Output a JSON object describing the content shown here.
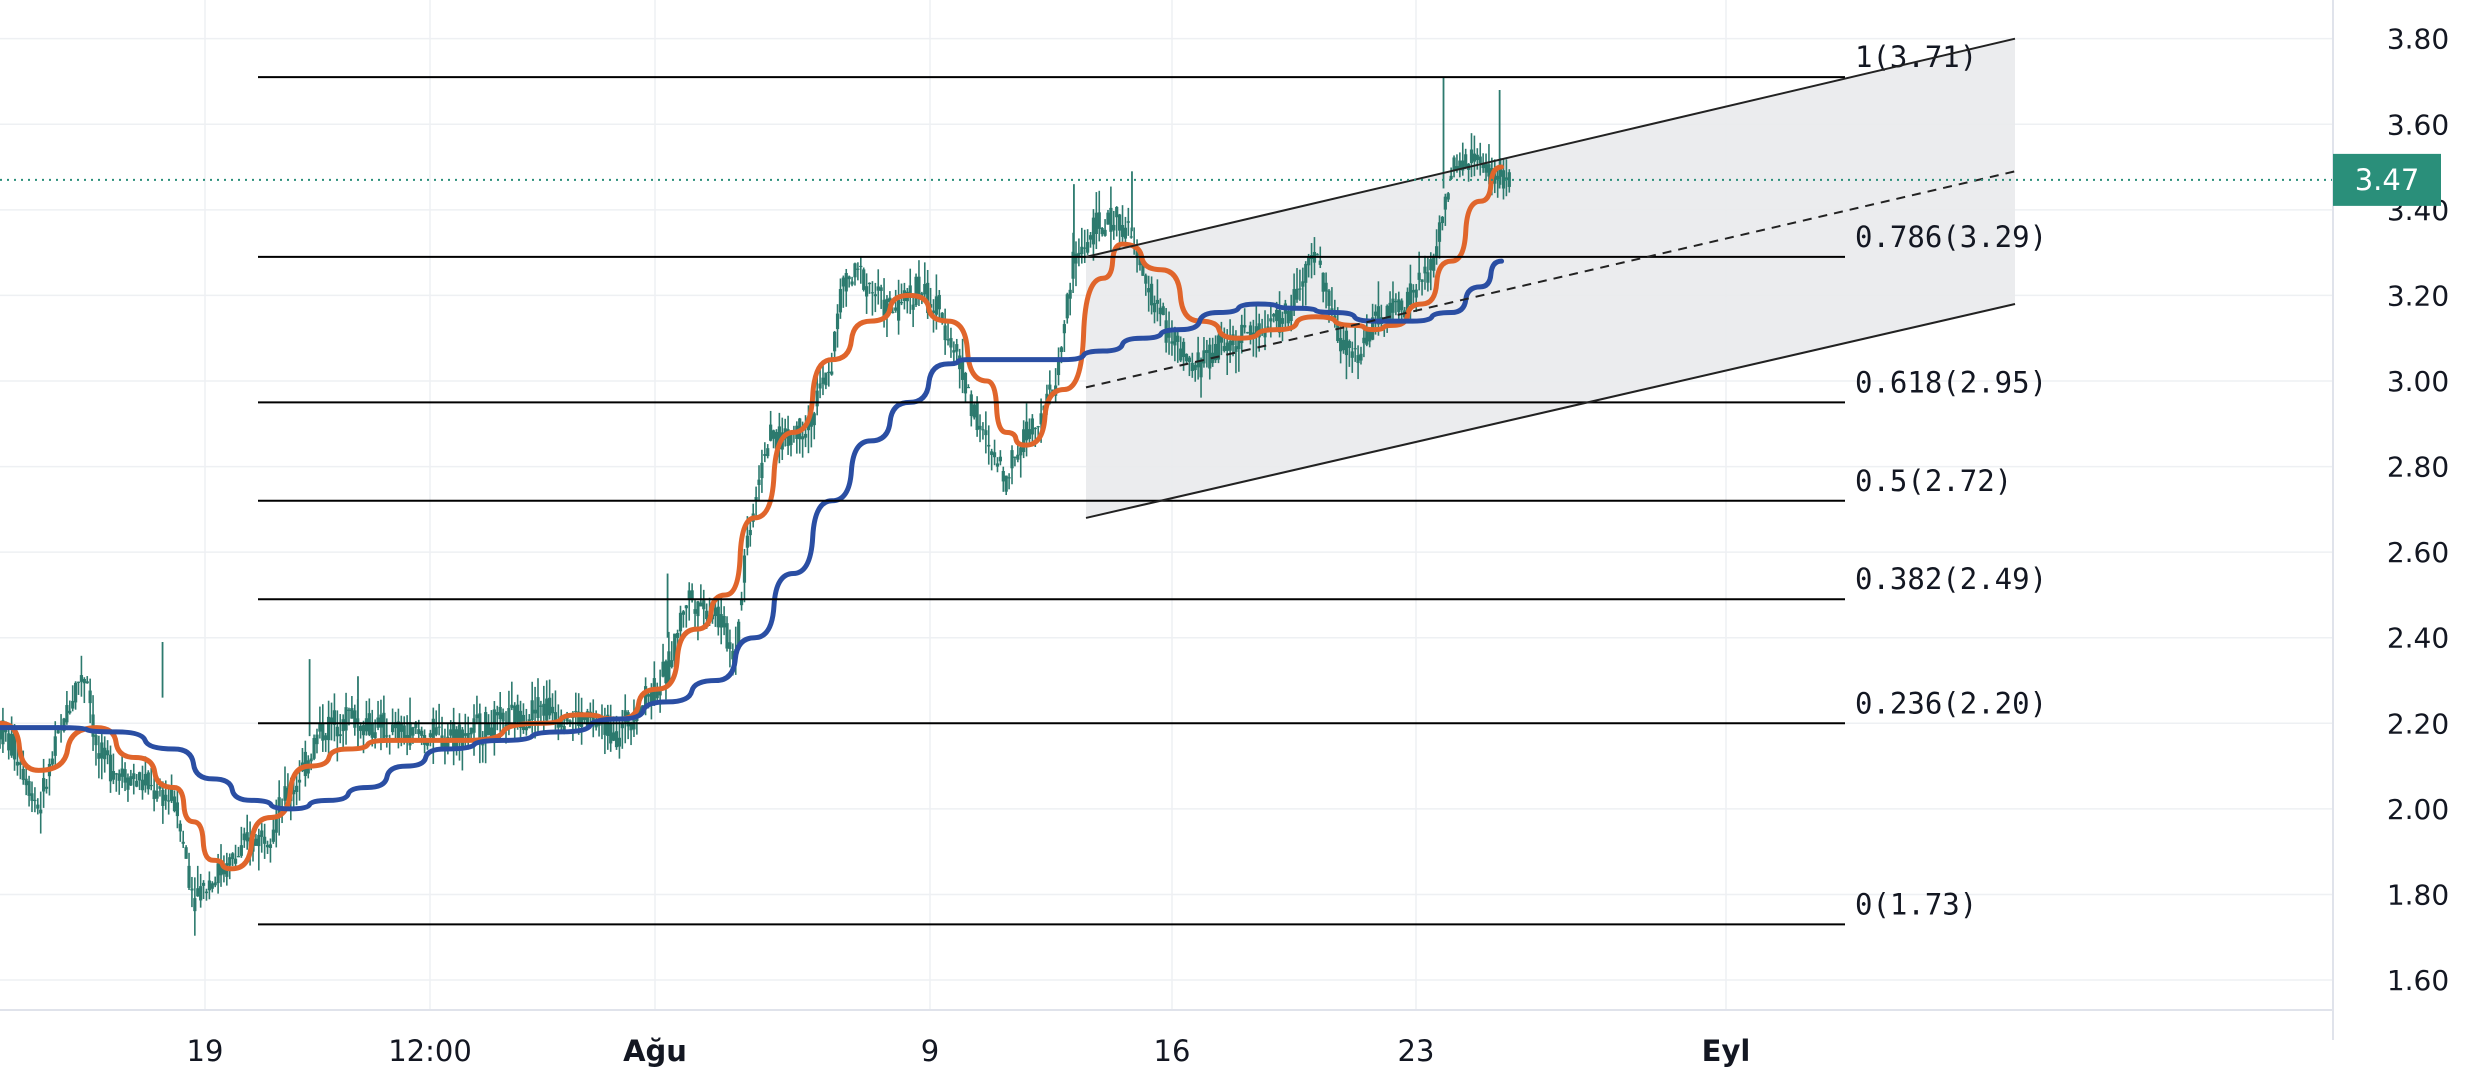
{
  "colors": {
    "background": "#ffffff",
    "grid": "#eef0f3",
    "candle": "#2c7a6e",
    "ma_orange": "#e0652b",
    "ma_blue": "#2a4ea3",
    "fib_line": "#000000",
    "channel_fill": "#e9eaec",
    "current_price": "#2a8f7a"
  },
  "chart_data": {
    "type": "candlestick",
    "grid": true,
    "y_axis": {
      "position": "right",
      "ylim": [
        1.53,
        3.86
      ],
      "ticks": [
        1.6,
        1.8,
        2.0,
        2.2,
        2.4,
        2.6,
        2.8,
        3.0,
        3.2,
        3.4,
        3.6,
        3.8
      ],
      "tick_labels": [
        "1.60",
        "1.80",
        "2.00",
        "2.20",
        "2.40",
        "2.60",
        "2.80",
        "3.00",
        "3.20",
        "3.40",
        "3.60",
        "3.80"
      ]
    },
    "x_axis": {
      "ticks": [
        {
          "label": "19",
          "bold": false
        },
        {
          "label": "12:00",
          "bold": false
        },
        {
          "label": "Ağu",
          "bold": true
        },
        {
          "label": "9",
          "bold": false
        },
        {
          "label": "16",
          "bold": false
        },
        {
          "label": "23",
          "bold": false
        },
        {
          "label": "Eyl",
          "bold": true
        }
      ]
    },
    "current_price": {
      "value": 3.47,
      "label": "3.47"
    },
    "fibonacci": [
      {
        "label": "1(3.71)",
        "ratio": 1,
        "price": 3.71
      },
      {
        "label": "0.786(3.29)",
        "ratio": 0.786,
        "price": 3.29
      },
      {
        "label": "0.618(2.95)",
        "ratio": 0.618,
        "price": 2.95
      },
      {
        "label": "0.5(2.72)",
        "ratio": 0.5,
        "price": 2.72
      },
      {
        "label": "0.382(2.49)",
        "ratio": 0.382,
        "price": 2.49
      },
      {
        "label": "0.236(2.20)",
        "ratio": 0.236,
        "price": 2.2
      },
      {
        "label": "0(1.73)",
        "ratio": 0,
        "price": 1.73
      }
    ],
    "price_path": [
      [
        0,
        2.19
      ],
      [
        0.01,
        2.12
      ],
      [
        0.02,
        2.0
      ],
      [
        0.03,
        2.16
      ],
      [
        0.04,
        2.3
      ],
      [
        0.045,
        2.32
      ],
      [
        0.05,
        2.12
      ],
      [
        0.07,
        2.07
      ],
      [
        0.09,
        2.02
      ],
      [
        0.1,
        1.8
      ],
      [
        0.12,
        1.88
      ],
      [
        0.14,
        1.96
      ],
      [
        0.155,
        2.08
      ],
      [
        0.165,
        2.18
      ],
      [
        0.18,
        2.22
      ],
      [
        0.2,
        2.18
      ],
      [
        0.22,
        2.17
      ],
      [
        0.24,
        2.18
      ],
      [
        0.26,
        2.2
      ],
      [
        0.28,
        2.24
      ],
      [
        0.3,
        2.21
      ],
      [
        0.32,
        2.18
      ],
      [
        0.33,
        2.24
      ],
      [
        0.345,
        2.32
      ],
      [
        0.355,
        2.5
      ],
      [
        0.37,
        2.46
      ],
      [
        0.38,
        2.36
      ],
      [
        0.385,
        2.6
      ],
      [
        0.395,
        2.85
      ],
      [
        0.41,
        2.88
      ],
      [
        0.42,
        2.92
      ],
      [
        0.43,
        3.05
      ],
      [
        0.435,
        3.22
      ],
      [
        0.445,
        3.25
      ],
      [
        0.46,
        3.16
      ],
      [
        0.475,
        3.22
      ],
      [
        0.49,
        3.12
      ],
      [
        0.5,
        2.98
      ],
      [
        0.51,
        2.84
      ],
      [
        0.52,
        2.78
      ],
      [
        0.53,
        2.88
      ],
      [
        0.545,
        2.98
      ],
      [
        0.555,
        3.28
      ],
      [
        0.565,
        3.35
      ],
      [
        0.58,
        3.38
      ],
      [
        0.59,
        3.25
      ],
      [
        0.6,
        3.15
      ],
      [
        0.615,
        3.02
      ],
      [
        0.63,
        3.08
      ],
      [
        0.65,
        3.12
      ],
      [
        0.665,
        3.15
      ],
      [
        0.68,
        3.3
      ],
      [
        0.69,
        3.12
      ],
      [
        0.7,
        3.06
      ],
      [
        0.71,
        3.13
      ],
      [
        0.725,
        3.18
      ],
      [
        0.74,
        3.26
      ],
      [
        0.75,
        3.48
      ],
      [
        0.76,
        3.52
      ],
      [
        0.77,
        3.48
      ],
      [
        0.78,
        3.47
      ]
    ],
    "series": [
      {
        "type": "line",
        "x": [
          0,
          0.02,
          0.05,
          0.07,
          0.09,
          0.1,
          0.11,
          0.12,
          0.14,
          0.16,
          0.18,
          0.2,
          0.24,
          0.28,
          0.3,
          0.32,
          0.34,
          0.36,
          0.375,
          0.39,
          0.41,
          0.43,
          0.45,
          0.47,
          0.49,
          0.51,
          0.52,
          0.53,
          0.55,
          0.57,
          0.58,
          0.6,
          0.62,
          0.64,
          0.66,
          0.68,
          0.7,
          0.71,
          0.72,
          0.735,
          0.75,
          0.765,
          0.776
        ],
        "values": [
          2.2,
          2.09,
          2.19,
          2.12,
          2.05,
          1.97,
          1.88,
          1.86,
          1.98,
          2.1,
          2.14,
          2.16,
          2.16,
          2.2,
          2.22,
          2.21,
          2.28,
          2.42,
          2.5,
          2.68,
          2.88,
          3.05,
          3.14,
          3.2,
          3.14,
          3.0,
          2.88,
          2.85,
          2.98,
          3.24,
          3.32,
          3.26,
          3.14,
          3.1,
          3.12,
          3.15,
          3.13,
          3.12,
          3.13,
          3.18,
          3.28,
          3.42,
          3.5
        ]
      },
      {
        "type": "line",
        "x": [
          0,
          0.03,
          0.06,
          0.09,
          0.11,
          0.13,
          0.15,
          0.17,
          0.19,
          0.21,
          0.23,
          0.26,
          0.29,
          0.32,
          0.345,
          0.37,
          0.39,
          0.41,
          0.43,
          0.45,
          0.47,
          0.49,
          0.5,
          0.52,
          0.55,
          0.57,
          0.59,
          0.61,
          0.63,
          0.65,
          0.67,
          0.69,
          0.71,
          0.73,
          0.75,
          0.765,
          0.776
        ],
        "values": [
          2.19,
          2.19,
          2.18,
          2.14,
          2.07,
          2.02,
          2.0,
          2.02,
          2.05,
          2.1,
          2.14,
          2.16,
          2.18,
          2.21,
          2.25,
          2.3,
          2.4,
          2.55,
          2.72,
          2.86,
          2.95,
          3.04,
          3.05,
          3.05,
          3.05,
          3.07,
          3.1,
          3.12,
          3.16,
          3.18,
          3.17,
          3.16,
          3.14,
          3.14,
          3.16,
          3.22,
          3.28
        ]
      }
    ]
  }
}
